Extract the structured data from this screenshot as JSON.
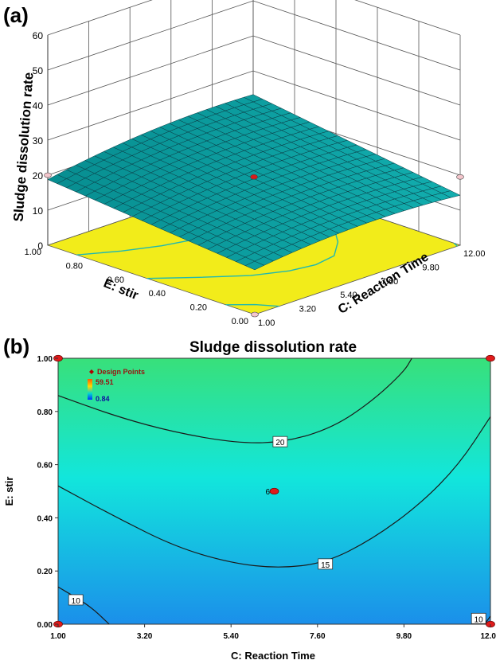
{
  "panel_labels": {
    "a": "(a)",
    "b": "(b)"
  },
  "chart_data": [
    {
      "type": "surface",
      "panel": "(a)",
      "zlabel": "Sludge dissolution rate",
      "xlabel": "C: Reaction Time",
      "ylabel": "E: stir",
      "z_ticks": [
        "0",
        "10",
        "20",
        "30",
        "40",
        "50",
        "60"
      ],
      "x_ticks": [
        "1.00",
        "3.20",
        "5.40",
        "7.60",
        "9.80",
        "12.00"
      ],
      "y_ticks": [
        "0.00",
        "0.20",
        "0.40",
        "0.60",
        "0.80",
        "1.00"
      ],
      "zlim": [
        0,
        60
      ],
      "xlim": [
        1.0,
        12.0
      ],
      "ylim": [
        0.0,
        1.0
      ],
      "colors": {
        "surface": "#1a7f86",
        "surface_dark": "#0b4e58",
        "floor": "#f2ec1a",
        "point_red": "#d81b1b",
        "point_pink": "#f4c6cc"
      }
    },
    {
      "type": "contour",
      "panel": "(b)",
      "title": "Sludge dissolution rate",
      "xlabel": "C: Reaction Time",
      "ylabel": "E: stir",
      "x_ticks": [
        "1.00",
        "3.20",
        "5.40",
        "7.60",
        "9.80",
        "12.00"
      ],
      "y_ticks": [
        "0.00",
        "0.20",
        "0.40",
        "0.60",
        "0.80",
        "1.00"
      ],
      "xlim": [
        1.0,
        12.0
      ],
      "ylim": [
        0.0,
        1.0
      ],
      "legend": {
        "title": "Design Points",
        "max": "59.51",
        "min": "0.84",
        "position": "top-left"
      },
      "contours": [
        {
          "level": "20",
          "points": [
            [
              1.0,
              0.86
            ],
            [
              2.5,
              0.78
            ],
            [
              4.0,
              0.72
            ],
            [
              5.6,
              0.68
            ],
            [
              6.8,
              0.685
            ],
            [
              8.0,
              0.74
            ],
            [
              9.0,
              0.84
            ],
            [
              9.8,
              0.95
            ],
            [
              10.0,
              1.0
            ]
          ]
        },
        {
          "level": "15",
          "points": [
            [
              1.0,
              0.52
            ],
            [
              2.5,
              0.4
            ],
            [
              4.0,
              0.29
            ],
            [
              5.4,
              0.23
            ],
            [
              6.6,
              0.21
            ],
            [
              7.8,
              0.23
            ],
            [
              9.0,
              0.32
            ],
            [
              10.2,
              0.45
            ],
            [
              11.2,
              0.6
            ],
            [
              12.0,
              0.78
            ]
          ]
        },
        {
          "level": "10",
          "points": [
            [
              1.0,
              0.14
            ],
            [
              1.8,
              0.07
            ],
            [
              2.3,
              0.0
            ]
          ]
        },
        {
          "level": "10",
          "points": [
            [
              11.85,
              0.0
            ],
            [
              12.0,
              0.03
            ]
          ]
        }
      ],
      "contour_labels": [
        {
          "text": "20",
          "x": 6.65,
          "y": 0.685
        },
        {
          "text": "15",
          "x": 7.8,
          "y": 0.225
        },
        {
          "text": "10",
          "x": 1.45,
          "y": 0.09
        },
        {
          "text": "10",
          "x": 11.7,
          "y": 0.02
        }
      ],
      "design_points": [
        {
          "x": 1.0,
          "y": 0.0
        },
        {
          "x": 1.0,
          "y": 1.0
        },
        {
          "x": 12.0,
          "y": 0.0
        },
        {
          "x": 12.0,
          "y": 1.0
        },
        {
          "x": 6.5,
          "y": 0.5,
          "label": "6"
        }
      ],
      "colors": {
        "top": "#34e07c",
        "middle": "#10e6e0",
        "bottom": "#1a8fe8",
        "contour": "#1a1a1a",
        "point": "#e01b1b"
      }
    }
  ]
}
